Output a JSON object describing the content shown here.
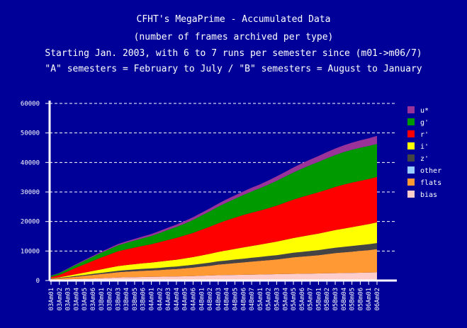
{
  "chart_data": {
    "type": "area",
    "title": [
      "CFHT's MegaPrime - Accumulated Data",
      "(number of frames archived per type)",
      "Starting Jan. 2003, with 6 to 7 runs per semester since (m01->m06/7)",
      "\"A\" semesters = February to July / \"B\" semesters = August to January"
    ],
    "ylim": [
      0,
      60000
    ],
    "yticks": [
      0,
      10000,
      20000,
      30000,
      40000,
      50000,
      60000
    ],
    "grid": true,
    "legend_position": "right",
    "stacked": true,
    "categories": [
      "03Am01",
      "03Am02",
      "03Am03",
      "03Am04",
      "03Am05",
      "03Am06",
      "03Bm01",
      "03Bm02",
      "03Bm03",
      "03Bm04",
      "03Bm05",
      "03Bm06",
      "04Am01",
      "04Am02",
      "04Am03",
      "04Am04",
      "04Am05",
      "04Am06",
      "04Bm01",
      "04Bm02",
      "04Bm03",
      "04Bm04",
      "04Bm05",
      "04Bm06",
      "04Bm07",
      "05Am01",
      "05Am02",
      "05Am03",
      "05Am04",
      "05Am05",
      "05Am06",
      "05Am07",
      "05Bm01",
      "05Bm02",
      "05Bm03",
      "05Bm04",
      "05Bm05",
      "05Bm06",
      "06Am01",
      "06Am02"
    ],
    "series": [
      {
        "name": "bias",
        "color": "#ffcccc",
        "values": [
          300,
          350,
          400,
          500,
          600,
          700,
          800,
          900,
          1000,
          1100,
          1150,
          1200,
          1250,
          1300,
          1350,
          1400,
          1450,
          1500,
          1600,
          1700,
          1800,
          1850,
          1900,
          1950,
          2000,
          2050,
          2100,
          2150,
          2200,
          2250,
          2300,
          2350,
          2400,
          2450,
          2500,
          2550,
          2600,
          2650,
          2700,
          2750
        ]
      },
      {
        "name": "flats",
        "color": "#ff9933",
        "values": [
          300,
          400,
          600,
          800,
          1000,
          1200,
          1400,
          1600,
          1800,
          1900,
          2000,
          2100,
          2150,
          2250,
          2400,
          2500,
          2700,
          2900,
          3100,
          3300,
          3600,
          3800,
          4000,
          4200,
          4400,
          4600,
          4800,
          5000,
          5300,
          5600,
          5800,
          6000,
          6200,
          6500,
          6800,
          7000,
          7200,
          7400,
          7600,
          7900
        ]
      },
      {
        "name": "other",
        "color": "#99ccff",
        "values": [
          0,
          0,
          0,
          0,
          0,
          0,
          0,
          0,
          0,
          0,
          0,
          0,
          0,
          0,
          0,
          0,
          0,
          0,
          0,
          0,
          0,
          0,
          0,
          0,
          0,
          0,
          0,
          0,
          0,
          0,
          0,
          0,
          0,
          0,
          0,
          0,
          0,
          0,
          0,
          0
        ]
      },
      {
        "name": "z'",
        "color": "#444444",
        "values": [
          100,
          150,
          200,
          250,
          300,
          350,
          400,
          450,
          500,
          550,
          600,
          650,
          700,
          750,
          800,
          850,
          900,
          950,
          1000,
          1050,
          1100,
          1150,
          1200,
          1250,
          1300,
          1350,
          1400,
          1450,
          1500,
          1550,
          1600,
          1650,
          1700,
          1750,
          1800,
          1850,
          1900,
          1950,
          2000,
          2050
        ]
      },
      {
        "name": "i'",
        "color": "#ffff00",
        "values": [
          100,
          200,
          400,
          600,
          800,
          1000,
          1200,
          1400,
          1600,
          1700,
          1800,
          1900,
          2000,
          2100,
          2200,
          2300,
          2450,
          2600,
          2800,
          3000,
          3200,
          3400,
          3600,
          3800,
          4000,
          4200,
          4400,
          4600,
          4800,
          5000,
          5200,
          5400,
          5600,
          5800,
          6000,
          6200,
          6400,
          6600,
          6800,
          7000
        ]
      },
      {
        "name": "r'",
        "color": "#ff0000",
        "values": [
          400,
          800,
          1500,
          2200,
          2800,
          3400,
          4000,
          4500,
          5000,
          5300,
          5600,
          5900,
          6200,
          6600,
          7000,
          7400,
          7800,
          8200,
          8700,
          9200,
          9700,
          10200,
          10600,
          11000,
          11300,
          11500,
          11800,
          12200,
          12600,
          13000,
          13400,
          13700,
          14000,
          14300,
          14600,
          14900,
          15100,
          15200,
          15300,
          15400
        ]
      },
      {
        "name": "g'",
        "color": "#009900",
        "values": [
          400,
          600,
          800,
          1000,
          1200,
          1400,
          1600,
          1800,
          2000,
          2200,
          2400,
          2600,
          2800,
          3100,
          3400,
          3700,
          4000,
          4400,
          4800,
          5200,
          5600,
          6000,
          6400,
          6800,
          7200,
          7600,
          8000,
          8400,
          8800,
          9200,
          9600,
          10000,
          10300,
          10600,
          10800,
          11000,
          11100,
          11200,
          11200,
          11200
        ]
      },
      {
        "name": "u*",
        "color": "#993399",
        "values": [
          100,
          100,
          150,
          200,
          250,
          300,
          350,
          400,
          450,
          500,
          550,
          600,
          650,
          700,
          750,
          800,
          850,
          900,
          950,
          1000,
          1050,
          1100,
          1150,
          1200,
          1250,
          1300,
          1400,
          1500,
          1600,
          1700,
          1800,
          1900,
          2000,
          2100,
          2200,
          2300,
          2400,
          2500,
          2600,
          2700
        ]
      }
    ]
  }
}
